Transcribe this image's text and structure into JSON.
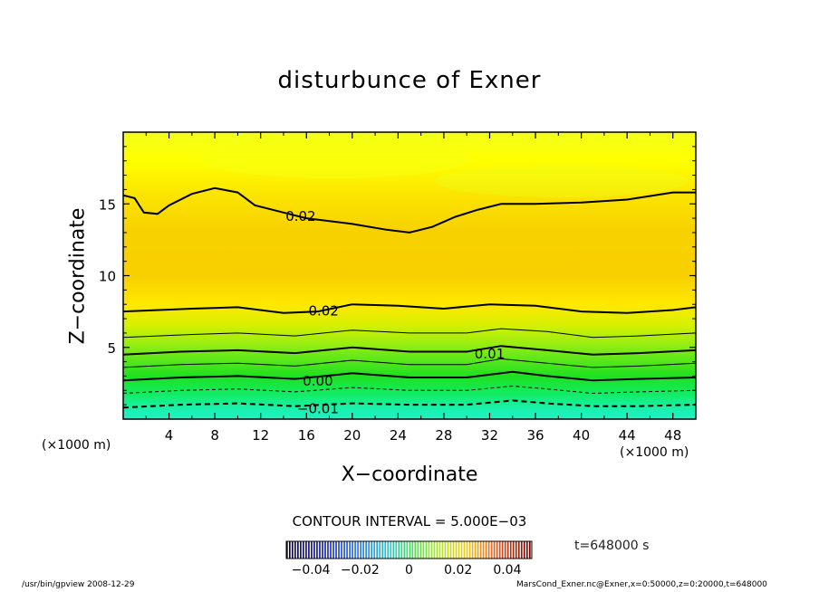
{
  "chart_data": {
    "type": "heatmap",
    "title": "disturbunce of Exner",
    "xlabel": "X−coordinate",
    "ylabel": "Z−coordinate",
    "x_unit": "(×1000 m)",
    "xlim": [
      0,
      50
    ],
    "ylim": [
      0,
      20
    ],
    "x_ticks": [
      4,
      8,
      12,
      16,
      20,
      24,
      28,
      32,
      36,
      40,
      44,
      48
    ],
    "y_ticks": [
      5,
      10,
      15
    ],
    "contour_interval": "CONTOUR INTERVAL = 5.000E−03",
    "contour_labels": [
      {
        "text": "0.02",
        "x": 15.5,
        "z": 14.2
      },
      {
        "text": "0.02",
        "x": 17.5,
        "z": 7.6
      },
      {
        "text": "0.01",
        "x": 32.0,
        "z": 4.6
      },
      {
        "text": "0.00",
        "x": 17.0,
        "z": 2.7
      },
      {
        "text": "−0.01",
        "x": 17.0,
        "z": 0.8
      }
    ],
    "colorbar": {
      "ticks": [
        "−0.04",
        "−0.02",
        "0",
        "0.02",
        "0.04"
      ],
      "min": -0.05,
      "max": 0.05
    },
    "time_label": "t=648000 s"
  },
  "footer": {
    "left": "/usr/bin/gpview  2008-12-29",
    "right": "MarsCond_Exner.nc@Exner,x=0:50000,z=0:20000,t=648000"
  }
}
